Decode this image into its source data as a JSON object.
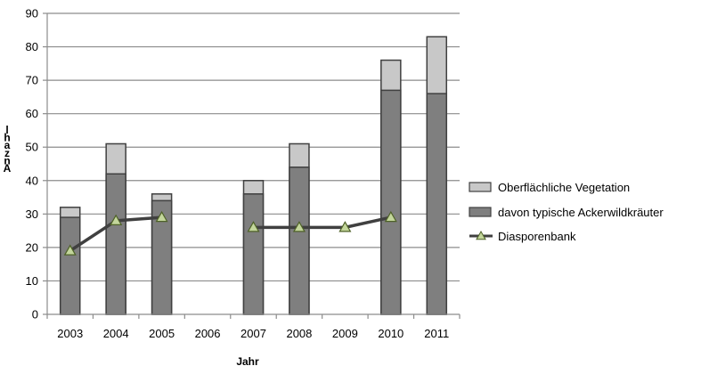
{
  "chart_data": {
    "type": "bar",
    "categories": [
      "2003",
      "2004",
      "2005",
      "2006",
      "2007",
      "2008",
      "2009",
      "2010",
      "2011"
    ],
    "xlabel": "Jahr",
    "ylabel": "Anzahl",
    "ylim": [
      0,
      90
    ],
    "yticks": [
      0,
      10,
      20,
      30,
      40,
      50,
      60,
      70,
      80,
      90
    ],
    "grid": true,
    "legend_position": "right",
    "series": [
      {
        "name": "Oberflächliche Vegetation",
        "kind": "bar",
        "color": "#c8c8c8",
        "values": [
          32,
          51,
          36,
          null,
          40,
          51,
          null,
          76,
          83
        ]
      },
      {
        "name": "davon typische Ackerwildkräuter",
        "kind": "bar",
        "color": "#7f7f7f",
        "values": [
          29,
          42,
          34,
          null,
          36,
          44,
          null,
          67,
          66
        ]
      },
      {
        "name": "Diasporenbank",
        "kind": "line",
        "color": "#404040",
        "marker_color": "#c3d69b",
        "values": [
          19,
          28,
          29,
          null,
          26,
          26,
          26,
          29,
          null
        ]
      }
    ]
  }
}
